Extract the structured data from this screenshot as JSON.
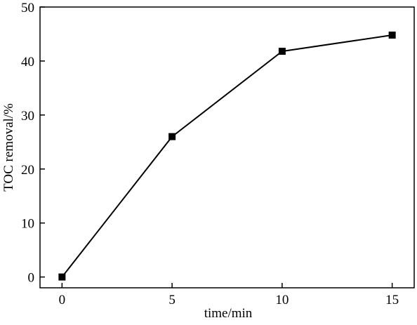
{
  "chart_data": {
    "type": "line",
    "x_label": "time/min",
    "y_label": "TOC removal/%",
    "x": [
      0,
      5,
      10,
      15
    ],
    "series": [
      {
        "color": "#000000",
        "values": [
          0,
          26,
          41.8,
          44.8
        ]
      }
    ],
    "xlim": [
      -1,
      16
    ],
    "xticks": [
      0,
      5,
      10,
      15
    ],
    "ylim": [
      -2,
      50
    ],
    "yticks": [
      0,
      10,
      20,
      30,
      40,
      50
    ],
    "marker": "square",
    "grid": false
  }
}
